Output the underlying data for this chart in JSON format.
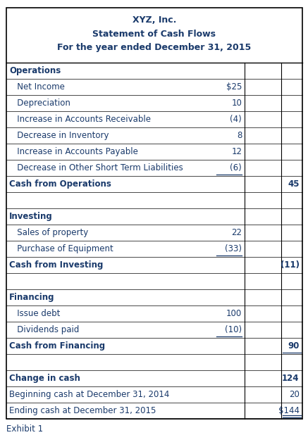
{
  "title_lines": [
    "XYZ, Inc.",
    "Statement of Cash Flows",
    "For the year ended December 31, 2015"
  ],
  "text_color": "#1a3a6b",
  "border_color": "#000000",
  "rows": [
    {
      "label": "Operations",
      "col1": "",
      "col2": "",
      "bold": true,
      "indent": false,
      "spacer": false,
      "underline_col1": false,
      "underline_col2": false,
      "double_underline": false
    },
    {
      "label": "   Net Income",
      "col1": "$25",
      "col2": "",
      "bold": false,
      "indent": true,
      "spacer": false,
      "underline_col1": false,
      "underline_col2": false,
      "double_underline": false
    },
    {
      "label": "   Depreciation",
      "col1": "10",
      "col2": "",
      "bold": false,
      "indent": true,
      "spacer": false,
      "underline_col1": false,
      "underline_col2": false,
      "double_underline": false
    },
    {
      "label": "   Increase in Accounts Receivable",
      "col1": "(4)",
      "col2": "",
      "bold": false,
      "indent": true,
      "spacer": false,
      "underline_col1": false,
      "underline_col2": false,
      "double_underline": false
    },
    {
      "label": "   Decrease in Inventory",
      "col1": "8",
      "col2": "",
      "bold": false,
      "indent": true,
      "spacer": false,
      "underline_col1": false,
      "underline_col2": false,
      "double_underline": false
    },
    {
      "label": "   Increase in Accounts Payable",
      "col1": "12",
      "col2": "",
      "bold": false,
      "indent": true,
      "spacer": false,
      "underline_col1": false,
      "underline_col2": false,
      "double_underline": false
    },
    {
      "label": "   Decrease in Other Short Term Liabilities",
      "col1": "(6)",
      "col2": "",
      "bold": false,
      "indent": true,
      "spacer": false,
      "underline_col1": true,
      "underline_col2": false,
      "double_underline": false
    },
    {
      "label": "Cash from Operations",
      "col1": "",
      "col2": "45",
      "bold": true,
      "indent": false,
      "spacer": false,
      "underline_col1": false,
      "underline_col2": false,
      "double_underline": false
    },
    {
      "label": "",
      "col1": "",
      "col2": "",
      "bold": false,
      "indent": false,
      "spacer": true,
      "underline_col1": false,
      "underline_col2": false,
      "double_underline": false
    },
    {
      "label": "Investing",
      "col1": "",
      "col2": "",
      "bold": true,
      "indent": false,
      "spacer": false,
      "underline_col1": false,
      "underline_col2": false,
      "double_underline": false
    },
    {
      "label": "   Sales of property",
      "col1": "22",
      "col2": "",
      "bold": false,
      "indent": true,
      "spacer": false,
      "underline_col1": false,
      "underline_col2": false,
      "double_underline": false
    },
    {
      "label": "   Purchase of Equipment",
      "col1": "(33)",
      "col2": "",
      "bold": false,
      "indent": true,
      "spacer": false,
      "underline_col1": true,
      "underline_col2": false,
      "double_underline": false
    },
    {
      "label": "Cash from Investing",
      "col1": "",
      "col2": "(11)",
      "bold": true,
      "indent": false,
      "spacer": false,
      "underline_col1": false,
      "underline_col2": false,
      "double_underline": false
    },
    {
      "label": "",
      "col1": "",
      "col2": "",
      "bold": false,
      "indent": false,
      "spacer": true,
      "underline_col1": false,
      "underline_col2": false,
      "double_underline": false
    },
    {
      "label": "Financing",
      "col1": "",
      "col2": "",
      "bold": true,
      "indent": false,
      "spacer": false,
      "underline_col1": false,
      "underline_col2": false,
      "double_underline": false
    },
    {
      "label": "   Issue debt",
      "col1": "100",
      "col2": "",
      "bold": false,
      "indent": true,
      "spacer": false,
      "underline_col1": false,
      "underline_col2": false,
      "double_underline": false
    },
    {
      "label": "   Dividends paid",
      "col1": "(10)",
      "col2": "",
      "bold": false,
      "indent": true,
      "spacer": false,
      "underline_col1": true,
      "underline_col2": false,
      "double_underline": false
    },
    {
      "label": "Cash from Financing",
      "col1": "",
      "col2": "90",
      "bold": true,
      "indent": false,
      "spacer": false,
      "underline_col1": false,
      "underline_col2": true,
      "double_underline": false
    },
    {
      "label": "",
      "col1": "",
      "col2": "",
      "bold": false,
      "indent": false,
      "spacer": true,
      "underline_col1": false,
      "underline_col2": false,
      "double_underline": false
    },
    {
      "label": "Change in cash",
      "col1": "",
      "col2": "124",
      "bold": true,
      "indent": false,
      "spacer": false,
      "underline_col1": false,
      "underline_col2": false,
      "double_underline": false
    },
    {
      "label": "Beginning cash at December 31, 2014",
      "col1": "",
      "col2": "20",
      "bold": false,
      "indent": false,
      "spacer": false,
      "underline_col1": false,
      "underline_col2": false,
      "double_underline": false
    },
    {
      "label": "Ending cash at December 31, 2015",
      "col1": "",
      "col2": "$144",
      "bold": false,
      "indent": false,
      "spacer": false,
      "underline_col1": false,
      "underline_col2": false,
      "double_underline": true
    }
  ],
  "footer": "Exhibit 1",
  "figsize": [
    4.37,
    6.18
  ],
  "dpi": 100
}
